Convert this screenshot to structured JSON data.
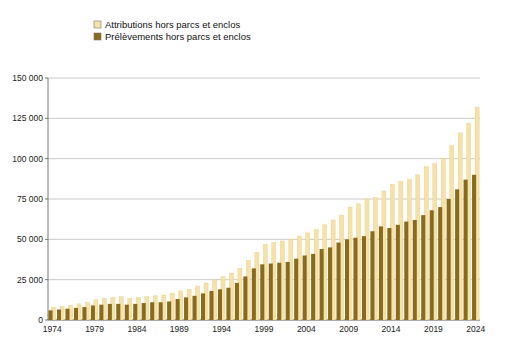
{
  "chart_data": {
    "type": "bar",
    "categories": [
      "1974",
      null,
      null,
      null,
      null,
      "1979",
      null,
      null,
      null,
      null,
      "1984",
      null,
      null,
      null,
      null,
      "1989",
      null,
      null,
      null,
      null,
      "1994",
      null,
      null,
      null,
      null,
      "1999",
      null,
      null,
      null,
      null,
      "2004",
      null,
      null,
      null,
      null,
      "2009",
      null,
      null,
      null,
      null,
      "2014",
      null,
      null,
      null,
      null,
      "2019",
      null,
      null,
      null,
      null,
      "2024"
    ],
    "series": [
      {
        "name": "Attributions hors parcs et enclos",
        "color": "#f6e2a8",
        "values": [
          8000,
          8500,
          9000,
          10000,
          11000,
          12500,
          13500,
          14000,
          14500,
          13500,
          14000,
          14500,
          15000,
          15500,
          16500,
          18000,
          19000,
          21000,
          23000,
          25000,
          27000,
          29000,
          32000,
          37000,
          42000,
          47000,
          48000,
          49000,
          50000,
          52000,
          54000,
          56000,
          59000,
          62000,
          65000,
          70000,
          72000,
          75000,
          76000,
          80000,
          84000,
          86000,
          87000,
          90000,
          95000,
          97000,
          100000,
          108000,
          116000,
          122000,
          132000
        ]
      },
      {
        "name": "Prélèvements hors parcs et enclos",
        "color": "#8a6a1c",
        "values": [
          6000,
          6500,
          7000,
          7500,
          8000,
          9000,
          9500,
          10000,
          10000,
          9500,
          10000,
          10500,
          11000,
          11000,
          11500,
          13000,
          14000,
          15000,
          16500,
          18000,
          19000,
          20000,
          23000,
          27000,
          32000,
          34500,
          35000,
          35500,
          36000,
          38000,
          40000,
          41000,
          44000,
          45000,
          48000,
          50000,
          51000,
          52000,
          55000,
          58000,
          57000,
          59000,
          61000,
          62000,
          65000,
          68000,
          70000,
          75000,
          81000,
          87000,
          90000
        ]
      }
    ],
    "ylim": [
      0,
      150000
    ],
    "yticks": [
      0,
      {
        "value": 25000,
        "label": "25 000"
      },
      {
        "value": 50000,
        "label": "50 000"
      },
      {
        "value": 75000,
        "label": "75 000"
      },
      {
        "value": 100000,
        "label": "100 000"
      },
      {
        "value": 125000,
        "label": "125 000"
      },
      {
        "value": 150000,
        "label": "150 000"
      }
    ],
    "grid": true,
    "legend": "top-left"
  }
}
